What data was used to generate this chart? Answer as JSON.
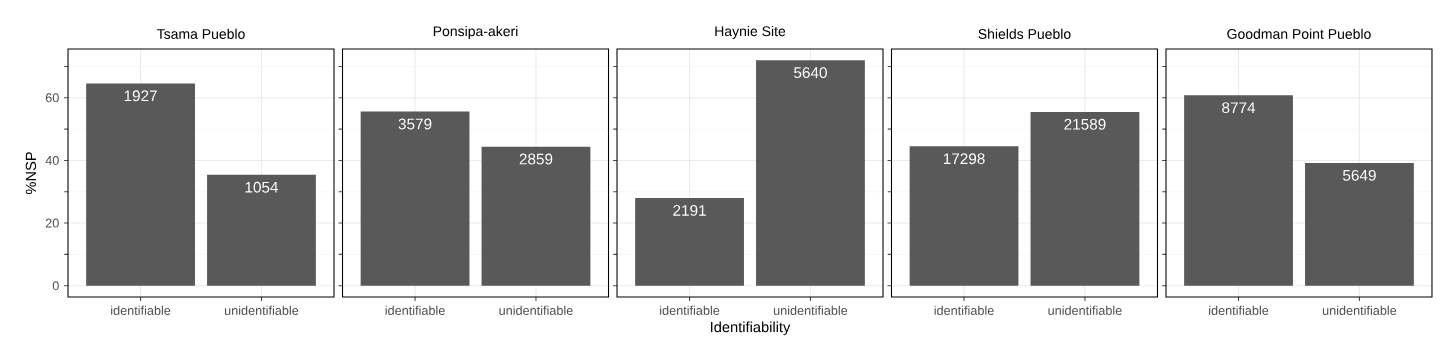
{
  "chart_data": [
    {
      "type": "bar",
      "title": "Tsama Pueblo",
      "ylabel": "%NSP",
      "categories": [
        "identifiable",
        "unidentifiable"
      ],
      "values": [
        64.6,
        35.4
      ],
      "annotations": [
        {
          "text": "1927",
          "x": "identifiable",
          "y": 64.6
        },
        {
          "text": "1054",
          "x": "unidentifiable",
          "y": 35.4
        }
      ],
      "color": "#595959",
      "ylim": [
        -3.6,
        75.6
      ],
      "yticks": [
        0,
        20,
        40,
        60
      ],
      "grid": true
    },
    {
      "type": "bar",
      "title": "Ponsipa-akeri",
      "categories": [
        "identifiable",
        "unidentifiable"
      ],
      "values": [
        55.6,
        44.4
      ],
      "annotations": [
        {
          "text": "3579",
          "x": "identifiable",
          "y": 55.6
        },
        {
          "text": "2859",
          "x": "unidentifiable",
          "y": 44.4
        }
      ],
      "color": "#595959",
      "ylim": [
        -3.6,
        75.6
      ],
      "yticks": [
        0,
        20,
        40,
        60
      ],
      "grid": true,
      "tick_labels": "x"
    },
    {
      "type": "bar",
      "title": "Haynie Site",
      "xlabel": "Identifiability",
      "categories": [
        "identifiable",
        "unidentifiable"
      ],
      "values": [
        28.0,
        72.0
      ],
      "annotations": [
        {
          "text": "2191",
          "x": "identifiable",
          "y": 28.0
        },
        {
          "text": "5640",
          "x": "unidentifiable",
          "y": 72.0
        }
      ],
      "color": "#595959",
      "ylim": [
        -3.6,
        75.6
      ],
      "yticks": [
        0,
        20,
        40,
        60
      ],
      "grid": true,
      "tick_labels": "x"
    },
    {
      "type": "bar",
      "title": "Shields Pueblo",
      "categories": [
        "identifiable",
        "unidentifiable"
      ],
      "values": [
        44.5,
        55.5
      ],
      "annotations": [
        {
          "text": "17298",
          "x": "identifiable",
          "y": 44.5
        },
        {
          "text": "21589",
          "x": "unidentifiable",
          "y": 55.5
        }
      ],
      "color": "#595959",
      "ylim": [
        -3.6,
        75.6
      ],
      "yticks": [
        0,
        20,
        40,
        60
      ],
      "grid": true,
      "tick_labels": "x"
    },
    {
      "type": "bar",
      "title": "Goodman Point Pueblo",
      "categories": [
        "identifiable",
        "unidentifiable"
      ],
      "values": [
        60.8,
        39.2
      ],
      "annotations": [
        {
          "text": "8774",
          "x": "identifiable",
          "y": 60.8
        },
        {
          "text": "5649",
          "x": "unidentifiable",
          "y": 39.2
        }
      ],
      "color": "#595959",
      "ylim": [
        -3.6,
        75.6
      ],
      "yticks": [
        0,
        20,
        40,
        60
      ],
      "grid": true,
      "tick_labels": "x"
    }
  ]
}
